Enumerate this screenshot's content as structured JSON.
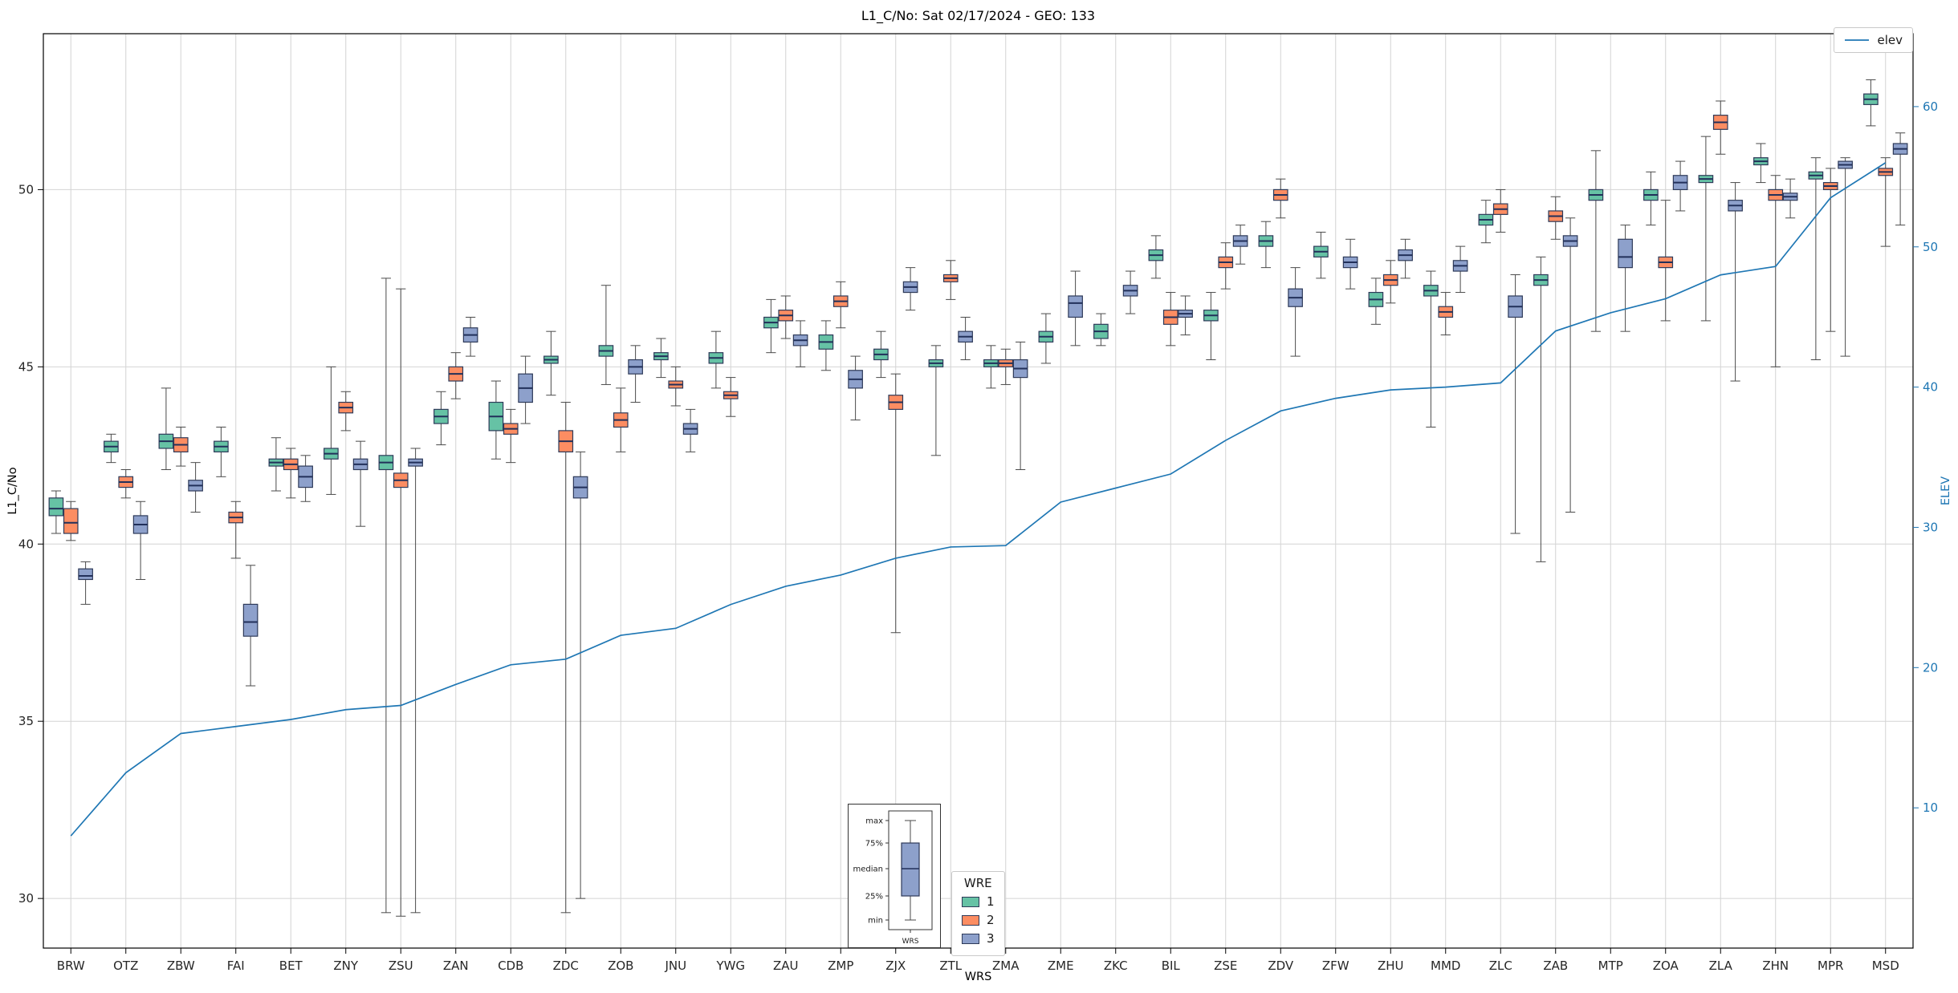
{
  "chart_data": {
    "type": "boxplot",
    "title": "L1_C/No: Sat 02/17/2024 - GEO: 133",
    "xlabel": "WRS",
    "ylabel": "L1_C/No",
    "y2label": "ELEV",
    "categories": [
      "BRW",
      "OTZ",
      "ZBW",
      "FAI",
      "BET",
      "ZNY",
      "ZSU",
      "ZAN",
      "CDB",
      "ZDC",
      "ZOB",
      "JNU",
      "YWG",
      "ZAU",
      "ZMP",
      "ZJX",
      "ZTL",
      "ZMA",
      "ZME",
      "ZKC",
      "BIL",
      "ZSE",
      "ZDV",
      "ZFW",
      "ZHU",
      "MMD",
      "ZLC",
      "ZAB",
      "MTP",
      "ZOA",
      "ZLA",
      "ZHN",
      "MPR",
      "MSD"
    ],
    "axes": {
      "y_left": {
        "min": 28.6,
        "max": 54.4,
        "ticks": [
          30,
          35,
          40,
          45,
          50
        ]
      },
      "y_right": {
        "min": 0,
        "max": 65.2,
        "ticks": [
          10,
          20,
          30,
          40,
          50,
          60
        ]
      }
    },
    "legend": {
      "title": "WRE"
    },
    "series": [
      {
        "name": "1",
        "color": "#66c2a5",
        "boxes": [
          [
            40.3,
            40.8,
            41.0,
            41.3,
            41.5
          ],
          [
            42.3,
            42.6,
            42.75,
            42.9,
            43.1
          ],
          [
            42.1,
            42.7,
            42.9,
            43.1,
            44.4
          ],
          [
            41.9,
            42.6,
            42.75,
            42.9,
            43.3
          ],
          [
            41.5,
            42.2,
            42.3,
            42.4,
            43.0
          ],
          [
            41.4,
            42.4,
            42.55,
            42.7,
            45.0
          ],
          [
            29.6,
            42.1,
            42.3,
            42.5,
            47.5
          ],
          [
            42.8,
            43.4,
            43.6,
            43.8,
            44.3
          ],
          [
            42.4,
            43.2,
            43.6,
            44.0,
            44.6
          ],
          [
            44.2,
            45.1,
            45.2,
            45.3,
            46.0
          ],
          [
            44.5,
            45.3,
            45.45,
            45.6,
            47.3
          ],
          [
            44.7,
            45.2,
            45.3,
            45.4,
            45.8
          ],
          [
            44.4,
            45.1,
            45.25,
            45.4,
            46.0
          ],
          [
            45.4,
            46.1,
            46.25,
            46.4,
            46.9
          ],
          [
            44.9,
            45.5,
            45.7,
            45.9,
            46.3
          ],
          [
            44.7,
            45.2,
            45.35,
            45.5,
            46.0
          ],
          [
            42.5,
            45.0,
            45.1,
            45.2,
            45.6
          ],
          [
            44.4,
            45.0,
            45.1,
            45.2,
            45.6
          ],
          [
            45.1,
            45.7,
            45.85,
            46.0,
            46.5
          ],
          [
            45.6,
            45.8,
            46.0,
            46.2,
            46.5
          ],
          [
            47.5,
            48.0,
            48.15,
            48.3,
            48.7
          ],
          [
            45.2,
            46.3,
            46.45,
            46.6,
            47.1
          ],
          [
            47.8,
            48.4,
            48.55,
            48.7,
            49.1
          ],
          [
            47.5,
            48.1,
            48.25,
            48.4,
            48.8
          ],
          [
            46.2,
            46.7,
            46.9,
            47.1,
            47.5
          ],
          [
            43.3,
            47.0,
            47.15,
            47.3,
            47.7
          ],
          [
            48.5,
            49.0,
            49.15,
            49.3,
            49.7
          ],
          [
            39.5,
            47.3,
            47.45,
            47.6,
            48.1
          ],
          [
            46.0,
            49.7,
            49.85,
            50.0,
            51.1
          ],
          [
            49.0,
            49.7,
            49.85,
            50.0,
            50.5
          ],
          [
            46.3,
            50.2,
            50.3,
            50.4,
            51.5
          ],
          [
            50.2,
            50.7,
            50.8,
            50.9,
            51.3
          ],
          [
            45.2,
            50.3,
            50.4,
            50.5,
            50.9
          ],
          [
            51.8,
            52.4,
            52.55,
            52.7,
            53.1
          ]
        ]
      },
      {
        "name": "2",
        "color": "#fc8d62",
        "boxes": [
          [
            40.1,
            40.3,
            40.6,
            41.0,
            41.2
          ],
          [
            41.3,
            41.6,
            41.75,
            41.9,
            42.1
          ],
          [
            42.2,
            42.6,
            42.8,
            43.0,
            43.3
          ],
          [
            39.6,
            40.6,
            40.75,
            40.9,
            41.2
          ],
          [
            41.3,
            42.1,
            42.25,
            42.4,
            42.7
          ],
          [
            43.2,
            43.7,
            43.85,
            44.0,
            44.3
          ],
          [
            29.5,
            41.6,
            41.8,
            42.0,
            47.2
          ],
          [
            44.1,
            44.6,
            44.8,
            45.0,
            45.4
          ],
          [
            42.3,
            43.1,
            43.25,
            43.4,
            43.8
          ],
          [
            29.6,
            42.6,
            42.9,
            43.2,
            44.0
          ],
          [
            42.6,
            43.3,
            43.5,
            43.7,
            44.4
          ],
          [
            43.9,
            44.4,
            44.5,
            44.6,
            45.0
          ],
          [
            43.6,
            44.1,
            44.2,
            44.3,
            44.7
          ],
          [
            45.8,
            46.3,
            46.45,
            46.6,
            47.0
          ],
          [
            46.1,
            46.7,
            46.85,
            47.0,
            47.4
          ],
          [
            37.5,
            43.8,
            44.0,
            44.2,
            44.8
          ],
          [
            46.9,
            47.4,
            47.5,
            47.6,
            48.0
          ],
          [
            44.5,
            45.0,
            45.1,
            45.2,
            45.5
          ],
          null,
          null,
          [
            45.6,
            46.2,
            46.4,
            46.6,
            47.1
          ],
          [
            47.2,
            47.8,
            47.95,
            48.1,
            48.5
          ],
          [
            49.2,
            49.7,
            49.85,
            50.0,
            50.3
          ],
          null,
          [
            46.8,
            47.3,
            47.45,
            47.6,
            48.0
          ],
          [
            45.9,
            46.4,
            46.55,
            46.7,
            47.1
          ],
          [
            48.8,
            49.3,
            49.45,
            49.6,
            50.0
          ],
          [
            48.6,
            49.1,
            49.25,
            49.4,
            49.8
          ],
          null,
          [
            46.3,
            47.8,
            47.95,
            48.1,
            49.7
          ],
          [
            51.0,
            51.7,
            51.9,
            52.1,
            52.5
          ],
          [
            45.0,
            49.7,
            49.85,
            50.0,
            50.4
          ],
          [
            46.0,
            50.0,
            50.1,
            50.2,
            50.6
          ],
          [
            48.4,
            50.4,
            50.5,
            50.6,
            50.9
          ]
        ]
      },
      {
        "name": "3",
        "color": "#8da0cb",
        "boxes": [
          [
            38.3,
            39.0,
            39.1,
            39.3,
            39.5
          ],
          [
            39.0,
            40.3,
            40.55,
            40.8,
            41.2
          ],
          [
            40.9,
            41.5,
            41.65,
            41.8,
            42.3
          ],
          [
            36.0,
            37.4,
            37.8,
            38.3,
            39.4
          ],
          [
            41.2,
            41.6,
            41.9,
            42.2,
            42.5
          ],
          [
            40.5,
            42.1,
            42.25,
            42.4,
            42.9
          ],
          [
            29.6,
            42.2,
            42.3,
            42.4,
            42.7
          ],
          [
            45.3,
            45.7,
            45.9,
            46.1,
            46.4
          ],
          [
            43.4,
            44.0,
            44.4,
            44.8,
            45.3
          ],
          [
            30.0,
            41.3,
            41.6,
            41.9,
            42.6
          ],
          [
            44.0,
            44.8,
            45.0,
            45.2,
            45.6
          ],
          [
            42.6,
            43.1,
            43.25,
            43.4,
            43.8
          ],
          null,
          [
            45.0,
            45.6,
            45.75,
            45.9,
            46.3
          ],
          [
            43.5,
            44.4,
            44.65,
            44.9,
            45.3
          ],
          [
            46.6,
            47.1,
            47.25,
            47.4,
            47.8
          ],
          [
            45.2,
            45.7,
            45.85,
            46.0,
            46.4
          ],
          [
            42.1,
            44.7,
            44.95,
            45.2,
            45.7
          ],
          [
            45.6,
            46.4,
            46.8,
            47.0,
            47.7
          ],
          [
            46.5,
            47.0,
            47.15,
            47.3,
            47.7
          ],
          [
            45.9,
            46.4,
            46.5,
            46.6,
            47.0
          ],
          [
            47.9,
            48.4,
            48.55,
            48.7,
            49.0
          ],
          [
            45.3,
            46.7,
            46.95,
            47.2,
            47.8
          ],
          [
            47.2,
            47.8,
            47.95,
            48.1,
            48.6
          ],
          [
            47.5,
            48.0,
            48.15,
            48.3,
            48.6
          ],
          [
            47.1,
            47.7,
            47.85,
            48.0,
            48.4
          ],
          [
            40.3,
            46.4,
            46.7,
            47.0,
            47.6
          ],
          [
            40.9,
            48.4,
            48.55,
            48.7,
            49.2
          ],
          [
            46.0,
            47.8,
            48.1,
            48.6,
            49.0
          ],
          [
            49.4,
            50.0,
            50.2,
            50.4,
            50.8
          ],
          [
            44.6,
            49.4,
            49.55,
            49.7,
            50.2
          ],
          [
            49.2,
            49.7,
            49.8,
            49.9,
            50.3
          ],
          [
            45.3,
            50.6,
            50.7,
            50.8,
            50.9
          ],
          [
            49.0,
            51.0,
            51.15,
            51.3,
            51.6
          ]
        ]
      }
    ],
    "elev": {
      "legend_label": "elev",
      "values": [
        8.0,
        12.5,
        15.3,
        15.8,
        16.3,
        17.0,
        17.3,
        18.8,
        20.2,
        20.6,
        22.3,
        22.8,
        24.5,
        25.8,
        26.6,
        27.8,
        28.6,
        28.7,
        31.8,
        32.8,
        33.8,
        36.2,
        38.3,
        39.2,
        39.8,
        40.0,
        40.3,
        44.0,
        45.3,
        46.3,
        48.0,
        48.6,
        53.5,
        56.0
      ]
    },
    "colors": {
      "grid": "#d4d4d4",
      "frame": "#000000",
      "box_edge": "#2e3a59",
      "median": "#22305a",
      "whisker": "#4a4a4a",
      "elev_line": "#1f77b4",
      "tick_label": "#262626"
    },
    "inset": {
      "labels": [
        "max",
        "75%",
        "median",
        "25%",
        "min"
      ],
      "xlabel": "WRS"
    }
  }
}
